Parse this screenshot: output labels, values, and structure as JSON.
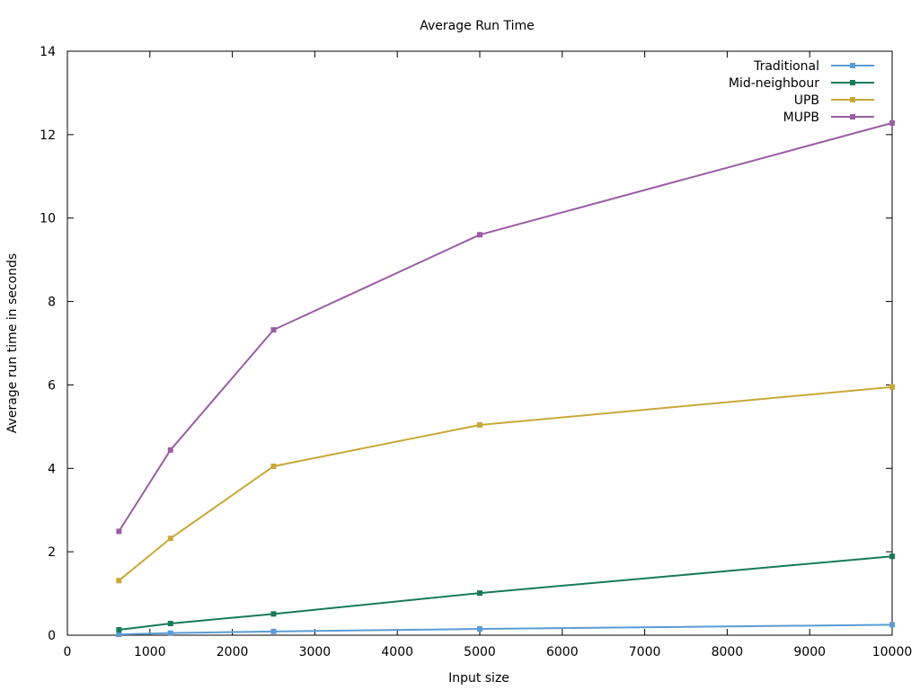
{
  "chart_data": {
    "type": "line",
    "title": "Average Run Time",
    "xlabel": "Input size",
    "ylabel": "Average run time in seconds",
    "xlim": [
      0,
      10000
    ],
    "ylim": [
      0,
      14
    ],
    "x_ticks": [
      0,
      1000,
      2000,
      3000,
      4000,
      5000,
      6000,
      7000,
      8000,
      9000,
      10000
    ],
    "y_ticks": [
      0,
      2,
      4,
      6,
      8,
      10,
      12,
      14
    ],
    "grid": false,
    "legend_position": "top-right",
    "x": [
      625,
      1250,
      2500,
      5000,
      10000
    ],
    "series": [
      {
        "name": "Traditional",
        "color": "#5b9bd5",
        "values": [
          0.02,
          0.05,
          0.09,
          0.15,
          0.25
        ]
      },
      {
        "name": "Mid-neighbour",
        "color": "#177a5b",
        "values": [
          0.13,
          0.28,
          0.51,
          1.01,
          1.89
        ]
      },
      {
        "name": "UPB",
        "color": "#c9a838",
        "values": [
          1.31,
          2.32,
          4.05,
          5.04,
          5.95
        ]
      },
      {
        "name": "MUPB",
        "color": "#9a5da4",
        "values": [
          2.49,
          4.44,
          7.32,
          9.6,
          12.28
        ]
      }
    ]
  }
}
